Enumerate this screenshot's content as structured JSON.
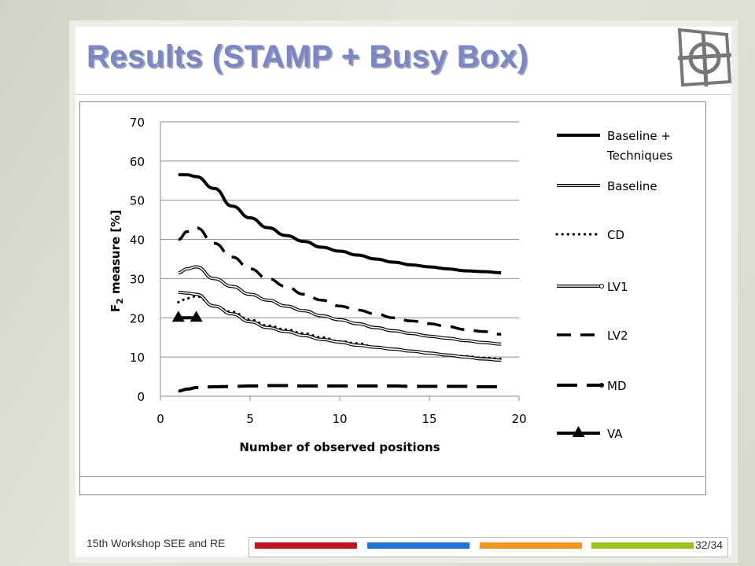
{
  "slide": {
    "title": "Results (STAMP + Busy Box)",
    "footer": "15th Workshop SEE and RE",
    "page": "32/34",
    "footer_colors": [
      "#c0161c",
      "#1e74d6",
      "#f4961c",
      "#98c31c"
    ]
  },
  "chart_data": {
    "type": "line",
    "xlabel": "Number of observed positions",
    "ylabel_prefix": "F",
    "ylabel_sub": "2",
    "ylabel_suffix": " measure [%]",
    "xlim": [
      0,
      20
    ],
    "ylim": [
      0,
      70
    ],
    "xticks": [
      0,
      5,
      10,
      15,
      20
    ],
    "yticks": [
      0,
      10,
      20,
      30,
      40,
      50,
      60,
      70
    ],
    "grid": "horizontal",
    "legend_position": "right",
    "series": [
      {
        "name": "Baseline + Techniques",
        "style": "thick-solid",
        "x": [
          1,
          1.5,
          2,
          3,
          4,
          5,
          6,
          7,
          8,
          9,
          10,
          11,
          12,
          13,
          14,
          15,
          16,
          17,
          18,
          19
        ],
        "y": [
          56.5,
          56.5,
          56,
          53,
          48.5,
          45.5,
          43,
          41,
          39.5,
          38,
          37,
          36,
          35,
          34.2,
          33.5,
          33,
          32.5,
          32,
          31.8,
          31.5
        ]
      },
      {
        "name": "Baseline",
        "style": "double-line",
        "x": [
          1,
          1.5,
          2,
          3,
          4,
          5,
          6,
          7,
          8,
          9,
          10,
          11,
          12,
          13,
          14,
          15,
          16,
          17,
          18,
          19
        ],
        "y": [
          31.5,
          32.5,
          33,
          30,
          28,
          26,
          24.5,
          23,
          21.8,
          20.5,
          19.5,
          18.5,
          17.5,
          16.7,
          16,
          15.3,
          14.8,
          14.2,
          13.7,
          13.3
        ]
      },
      {
        "name": "CD",
        "style": "dotted",
        "x": [
          1,
          1.5,
          2,
          3,
          4,
          5,
          6,
          7,
          8,
          9,
          10,
          11,
          12,
          13,
          14,
          15,
          16,
          17,
          18,
          19
        ],
        "y": [
          24,
          25,
          25.5,
          23,
          21.5,
          19.5,
          18,
          17,
          16,
          15,
          14,
          13.5,
          12.5,
          12,
          11.5,
          11,
          10.5,
          10.2,
          9.8,
          9.5
        ]
      },
      {
        "name": "LV1",
        "style": "double-line",
        "x": [
          1,
          1.5,
          2,
          3,
          4,
          5,
          6,
          7,
          8,
          9,
          10,
          11,
          12,
          13,
          14,
          15,
          16,
          17,
          18,
          19
        ],
        "y": [
          26.5,
          26.3,
          26,
          23,
          21,
          19,
          17.5,
          16.5,
          15.5,
          14.5,
          13.8,
          13,
          12.5,
          12,
          11.5,
          11,
          10.5,
          10,
          9.5,
          9.2
        ]
      },
      {
        "name": "LV2",
        "style": "dashed",
        "x": [
          1,
          1.5,
          2,
          3,
          4,
          5,
          6,
          7,
          8,
          9,
          10,
          11,
          12,
          13,
          14,
          15,
          16,
          17,
          18,
          19
        ],
        "y": [
          40,
          42,
          43,
          39,
          35.5,
          32.5,
          30,
          28,
          26,
          24.5,
          23,
          22,
          21,
          20,
          19.2,
          18.5,
          17.8,
          17,
          16.5,
          15.8
        ]
      },
      {
        "name": "MD",
        "style": "long-dashed",
        "x": [
          1,
          1.5,
          2,
          3,
          4,
          5,
          6,
          7,
          8,
          9,
          10,
          11,
          12,
          13,
          14,
          15,
          16,
          17,
          18,
          19
        ],
        "y": [
          1.3,
          1.8,
          2.2,
          2.4,
          2.5,
          2.6,
          2.7,
          2.7,
          2.6,
          2.6,
          2.6,
          2.6,
          2.6,
          2.6,
          2.5,
          2.5,
          2.5,
          2.5,
          2.4,
          2.4
        ]
      },
      {
        "name": "VA",
        "style": "triangle-markers",
        "x": [
          1,
          2
        ],
        "y": [
          20,
          20
        ]
      }
    ],
    "legend": [
      {
        "label": "Baseline +",
        "label2": "Techniques",
        "style": "thick-solid"
      },
      {
        "label": "Baseline",
        "style": "double-line"
      },
      {
        "label": "CD",
        "style": "dotted"
      },
      {
        "label": "LV1",
        "style": "double-line-dot"
      },
      {
        "label": "LV2",
        "style": "dashed"
      },
      {
        "label": "MD",
        "style": "long-dashed-dot"
      },
      {
        "label": "VA",
        "style": "triangle-markers"
      }
    ]
  }
}
